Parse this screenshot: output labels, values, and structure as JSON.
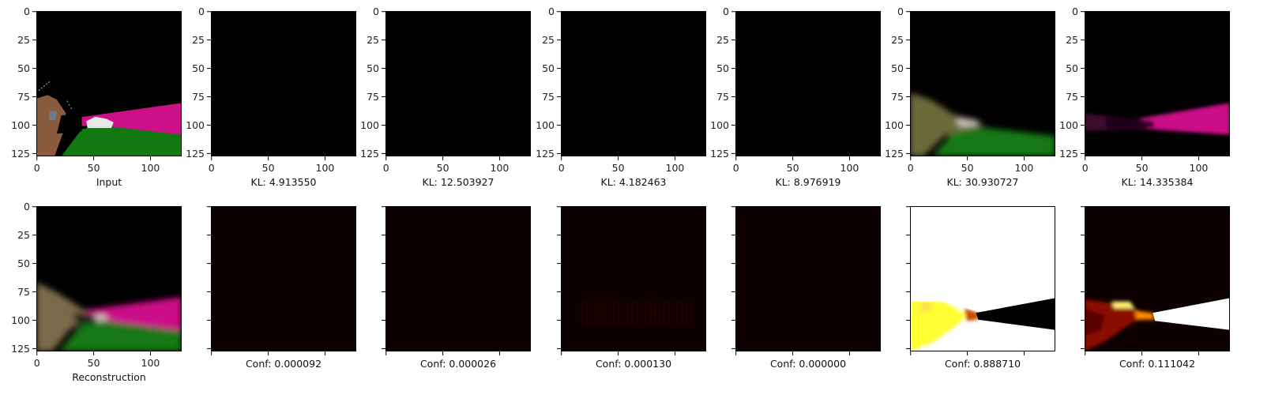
{
  "figure": {
    "background": "#ffffff",
    "axis_color": "#000000"
  },
  "chart_data": [
    {
      "type": "image",
      "row": 0,
      "col": 0,
      "xlabel": "Input",
      "content": "Road scene: black sky, magenta road band on the right, green ground at bottom, brown object on the left, small white vehicle near center",
      "xticks": [
        0,
        50,
        100
      ],
      "yticks": [
        0,
        25,
        50,
        75,
        100,
        125
      ],
      "xlim": [
        0,
        128
      ],
      "ylim": [
        128,
        0
      ]
    },
    {
      "type": "image",
      "row": 0,
      "col": 1,
      "xlabel": "KL: 4.913550",
      "content": "all black",
      "xticks": [
        0,
        50,
        100
      ],
      "yticks": [
        0,
        25,
        50,
        75,
        100,
        125
      ],
      "xlim": [
        0,
        128
      ],
      "ylim": [
        128,
        0
      ]
    },
    {
      "type": "image",
      "row": 0,
      "col": 2,
      "xlabel": "KL: 12.503927",
      "content": "all black",
      "xticks": [
        0,
        50,
        100
      ],
      "yticks": [
        0,
        25,
        50,
        75,
        100,
        125
      ],
      "xlim": [
        0,
        128
      ],
      "ylim": [
        128,
        0
      ]
    },
    {
      "type": "image",
      "row": 0,
      "col": 3,
      "xlabel": "KL: 4.182463",
      "content": "all black",
      "xticks": [
        0,
        50,
        100
      ],
      "yticks": [
        0,
        25,
        50,
        75,
        100,
        125
      ],
      "xlim": [
        0,
        128
      ],
      "ylim": [
        128,
        0
      ]
    },
    {
      "type": "image",
      "row": 0,
      "col": 4,
      "xlabel": "KL: 8.976919",
      "content": "all black",
      "xticks": [
        0,
        50,
        100
      ],
      "yticks": [
        0,
        25,
        50,
        75,
        100,
        125
      ],
      "xlim": [
        0,
        128
      ],
      "ylim": [
        128,
        0
      ]
    },
    {
      "type": "image",
      "row": 0,
      "col": 5,
      "xlabel": "KL: 30.930727",
      "content": "Blurry scene: olive/brown blob on left, green ground at bottom, black sky",
      "xticks": [
        0,
        50,
        100
      ],
      "yticks": [
        0,
        25,
        50,
        75,
        100,
        125
      ],
      "xlim": [
        0,
        128
      ],
      "ylim": [
        128,
        0
      ]
    },
    {
      "type": "image",
      "row": 0,
      "col": 6,
      "xlabel": "KL: 14.335384",
      "content": "Magenta road band on the right fading to dark purple on the left, black elsewhere",
      "xticks": [
        0,
        50,
        100
      ],
      "yticks": [
        0,
        25,
        50,
        75,
        100,
        125
      ],
      "xlim": [
        0,
        128
      ],
      "ylim": [
        128,
        0
      ]
    },
    {
      "type": "image",
      "row": 1,
      "col": 0,
      "xlabel": "Reconstruction",
      "content": "Blurry reconstruction: black sky, magenta road band, green ground, brown blob on left",
      "xticks": [
        0,
        50,
        100
      ],
      "yticks": [
        0,
        25,
        50,
        75,
        100,
        125
      ],
      "xlim": [
        0,
        128
      ],
      "ylim": [
        128,
        0
      ]
    },
    {
      "type": "heatmap",
      "row": 1,
      "col": 1,
      "xlabel": "Conf: 0.000092",
      "content": "near-black dark red",
      "tick_labels_hidden": true
    },
    {
      "type": "heatmap",
      "row": 1,
      "col": 2,
      "xlabel": "Conf: 0.000026",
      "content": "near-black dark red",
      "tick_labels_hidden": true
    },
    {
      "type": "heatmap",
      "row": 1,
      "col": 3,
      "xlabel": "Conf: 0.000130",
      "content": "near-black dark red with faint red band",
      "tick_labels_hidden": true
    },
    {
      "type": "heatmap",
      "row": 1,
      "col": 4,
      "xlabel": "Conf: 0.000000",
      "content": "near-black dark red",
      "tick_labels_hidden": true
    },
    {
      "type": "heatmap",
      "row": 1,
      "col": 5,
      "xlabel": "Conf: 0.888710",
      "content": "white and yellow everywhere except a black wedge region on the right",
      "tick_labels_hidden": true
    },
    {
      "type": "heatmap",
      "row": 1,
      "col": 6,
      "xlabel": "Conf: 0.111042",
      "content": "dark red background with white wedge on the right",
      "tick_labels_hidden": true
    }
  ],
  "colors": {
    "sky": "#000000",
    "road": "#cc1188",
    "ground": "#127812",
    "car": "#e8e8e8",
    "brown": "#8a5a3c",
    "heat_dark": "#0d0000",
    "heat_red": "#8b0a00",
    "heat_yellow": "#ffff30",
    "heat_white": "#ffffff"
  }
}
